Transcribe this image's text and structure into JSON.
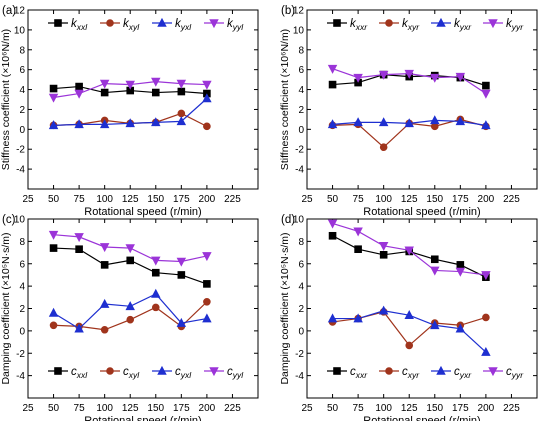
{
  "panels": [
    {
      "letter": "(a)"
    },
    {
      "letter": "(b)"
    },
    {
      "letter": "(c)"
    },
    {
      "letter": "(d)"
    }
  ],
  "chart_data": [
    {
      "type": "line",
      "panel_label": "(a)",
      "xlabel": "Rotational speed (r/min)",
      "ylabel": "Stiffness coefficient (×10⁶N/m)",
      "xlim": [
        25,
        250
      ],
      "ylim": [
        -6,
        12
      ],
      "xticks": [
        25,
        50,
        75,
        100,
        125,
        150,
        175,
        200,
        225
      ],
      "yticks": [
        -4,
        -2,
        0,
        2,
        4,
        6,
        8,
        10,
        12
      ],
      "legend": "top",
      "x": [
        50,
        75,
        100,
        125,
        150,
        175,
        200
      ],
      "series": [
        {
          "name": "kxxl",
          "name_base": "k",
          "name_sub": "xxl",
          "color": "#000000",
          "marker": "square",
          "values": [
            4.1,
            4.3,
            3.7,
            3.9,
            3.7,
            3.8,
            3.6
          ]
        },
        {
          "name": "kxyl",
          "name_base": "k",
          "name_sub": "xyl",
          "color": "#a0341c",
          "marker": "circle",
          "values": [
            0.4,
            0.5,
            0.9,
            0.6,
            0.7,
            1.6,
            0.3
          ]
        },
        {
          "name": "kyxl",
          "name_base": "k",
          "name_sub": "yxl",
          "color": "#1e2fd0",
          "marker": "triangle-up",
          "values": [
            0.4,
            0.5,
            0.5,
            0.6,
            0.7,
            0.8,
            3.1
          ]
        },
        {
          "name": "kyyl",
          "name_base": "k",
          "name_sub": "yyl",
          "color": "#9b34d8",
          "marker": "triangle-down",
          "values": [
            3.2,
            3.6,
            4.6,
            4.5,
            4.8,
            4.6,
            4.5
          ]
        }
      ]
    },
    {
      "type": "line",
      "panel_label": "(b)",
      "xlabel": "Rotational speed (r/min)",
      "ylabel": "Stiffness coefficient (×10⁶N/m)",
      "xlim": [
        25,
        250
      ],
      "ylim": [
        -6,
        12
      ],
      "xticks": [
        25,
        50,
        75,
        100,
        125,
        150,
        175,
        200,
        225
      ],
      "yticks": [
        -4,
        -2,
        0,
        2,
        4,
        6,
        8,
        10,
        12
      ],
      "legend": "top",
      "x": [
        50,
        75,
        100,
        125,
        150,
        175,
        200
      ],
      "series": [
        {
          "name": "kxxr",
          "name_base": "k",
          "name_sub": "xxr",
          "color": "#000000",
          "marker": "square",
          "values": [
            4.5,
            4.7,
            5.5,
            5.3,
            5.4,
            5.2,
            4.4
          ]
        },
        {
          "name": "kxyr",
          "name_base": "k",
          "name_sub": "xyr",
          "color": "#a0341c",
          "marker": "circle",
          "values": [
            0.4,
            0.5,
            -1.8,
            0.6,
            0.3,
            1.0,
            0.3
          ]
        },
        {
          "name": "kyxr",
          "name_base": "k",
          "name_sub": "yxr",
          "color": "#1e2fd0",
          "marker": "triangle-up",
          "values": [
            0.5,
            0.7,
            0.7,
            0.6,
            0.9,
            0.8,
            0.4
          ]
        },
        {
          "name": "kyyr",
          "name_base": "k",
          "name_sub": "yyr",
          "color": "#9b34d8",
          "marker": "triangle-down",
          "values": [
            6.1,
            5.2,
            5.5,
            5.6,
            5.2,
            5.3,
            3.6
          ]
        }
      ]
    },
    {
      "type": "line",
      "panel_label": "(c)",
      "xlabel": "Rotational speed (r/min)",
      "ylabel": "Damping coefficient (×10⁵N·s/m)",
      "xlim": [
        25,
        250
      ],
      "ylim": [
        -6,
        10
      ],
      "xticks": [
        25,
        50,
        75,
        100,
        125,
        150,
        175,
        200,
        225
      ],
      "yticks": [
        -4,
        -2,
        0,
        2,
        4,
        6,
        8,
        10
      ],
      "legend": "bottom",
      "x": [
        50,
        75,
        100,
        125,
        150,
        175,
        200
      ],
      "series": [
        {
          "name": "cxxl",
          "name_base": "c",
          "name_sub": "xxl",
          "color": "#000000",
          "marker": "square",
          "values": [
            7.4,
            7.3,
            5.9,
            6.3,
            5.2,
            5.0,
            4.2
          ]
        },
        {
          "name": "cxyl",
          "name_base": "c",
          "name_sub": "xyl",
          "color": "#a0341c",
          "marker": "circle",
          "values": [
            0.5,
            0.4,
            0.1,
            1.0,
            2.1,
            0.4,
            2.6
          ]
        },
        {
          "name": "cyxl",
          "name_base": "c",
          "name_sub": "yxl",
          "color": "#1e2fd0",
          "marker": "triangle-up",
          "values": [
            1.6,
            0.2,
            2.4,
            2.2,
            3.3,
            0.7,
            1.1
          ]
        },
        {
          "name": "cyyl",
          "name_base": "c",
          "name_sub": "yyl",
          "color": "#9b34d8",
          "marker": "triangle-down",
          "values": [
            8.6,
            8.4,
            7.5,
            7.4,
            6.3,
            6.2,
            6.7
          ]
        }
      ]
    },
    {
      "type": "line",
      "panel_label": "(d)",
      "xlabel": "Rotational speed (r/min)",
      "ylabel": "Damping coefficient (×10⁵N·s/m)",
      "xlim": [
        25,
        250
      ],
      "ylim": [
        -6,
        10
      ],
      "xticks": [
        25,
        50,
        75,
        100,
        125,
        150,
        175,
        200,
        225
      ],
      "yticks": [
        -4,
        -2,
        0,
        2,
        4,
        6,
        8,
        10
      ],
      "legend": "bottom",
      "x": [
        50,
        75,
        100,
        125,
        150,
        175,
        200
      ],
      "series": [
        {
          "name": "cxxr",
          "name_base": "c",
          "name_sub": "xxr",
          "color": "#000000",
          "marker": "square",
          "values": [
            8.5,
            7.3,
            6.8,
            7.1,
            6.4,
            5.9,
            4.8
          ]
        },
        {
          "name": "cxyr",
          "name_base": "c",
          "name_sub": "xyr",
          "color": "#a0341c",
          "marker": "circle",
          "values": [
            0.8,
            1.1,
            1.7,
            -1.3,
            0.7,
            0.5,
            1.2
          ]
        },
        {
          "name": "cyxr",
          "name_base": "c",
          "name_sub": "yxr",
          "color": "#1e2fd0",
          "marker": "triangle-up",
          "values": [
            1.1,
            1.1,
            1.8,
            1.4,
            0.5,
            0.2,
            -1.9
          ]
        },
        {
          "name": "cyyr",
          "name_base": "c",
          "name_sub": "yyr",
          "color": "#9b34d8",
          "marker": "triangle-down",
          "values": [
            9.6,
            8.9,
            7.6,
            7.2,
            5.4,
            5.3,
            5.0
          ]
        }
      ]
    }
  ]
}
